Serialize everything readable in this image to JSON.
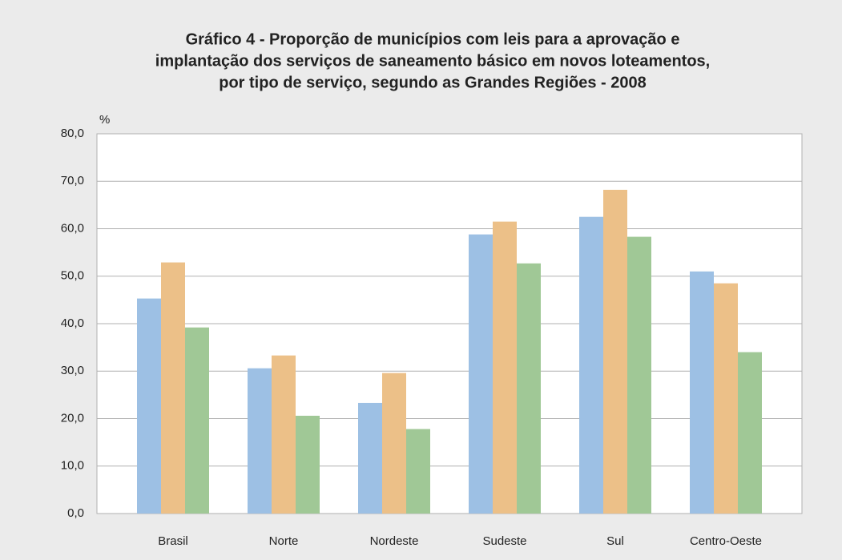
{
  "chart_data": {
    "type": "bar",
    "title": [
      "Gráfico 4 - Proporção de municípios com leis para a aprovação e",
      "implantação dos serviços de saneamento básico em novos loteamentos,",
      "por tipo de serviço, segundo as Grandes Regiões - 2008"
    ],
    "y_label": "%",
    "categories": [
      "Brasil",
      "Norte",
      "Nordeste",
      "Sudeste",
      "Sul",
      "Centro-Oeste"
    ],
    "series": [
      {
        "color": "#9dc0e4",
        "values": [
          45.3,
          30.6,
          23.3,
          58.8,
          62.5,
          51.0
        ]
      },
      {
        "color": "#ecc088",
        "values": [
          52.9,
          33.3,
          29.6,
          61.5,
          68.2,
          48.5
        ]
      },
      {
        "color": "#a0c896",
        "values": [
          39.2,
          20.6,
          17.8,
          52.7,
          58.3,
          34.0
        ]
      }
    ],
    "ylim": [
      0,
      80
    ],
    "yticks": [
      {
        "value": 0,
        "label": "0,0"
      },
      {
        "value": 10,
        "label": "10,0"
      },
      {
        "value": 20,
        "label": "20,0"
      },
      {
        "value": 30,
        "label": "30,0"
      },
      {
        "value": 40,
        "label": "40,0"
      },
      {
        "value": 50,
        "label": "50,0"
      },
      {
        "value": 60,
        "label": "60,0"
      },
      {
        "value": 70,
        "label": "70,0"
      },
      {
        "value": 80,
        "label": "80,0"
      }
    ],
    "grid": true
  }
}
